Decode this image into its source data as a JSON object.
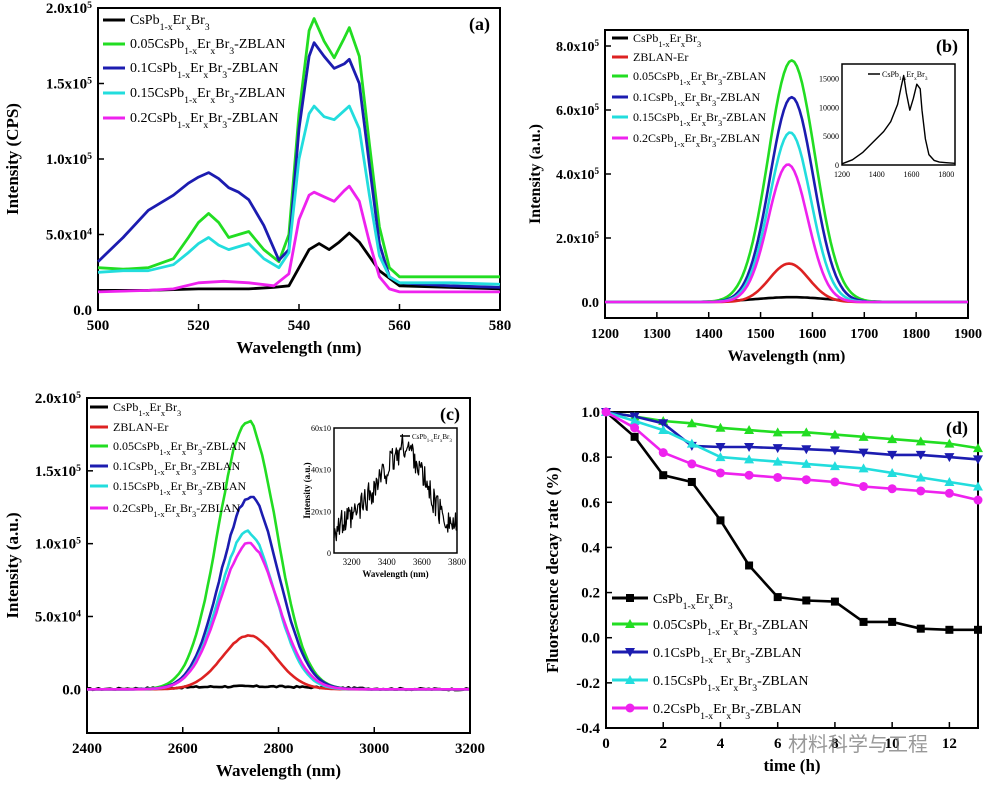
{
  "figure": {
    "watermark": "材料科学与工程"
  },
  "chart_data": [
    {
      "panel": "(a)",
      "type": "line",
      "xlabel": "Wavelength (nm)",
      "ylabel": "Intensity (CPS)",
      "xlim": [
        500,
        580
      ],
      "ylim": [
        0,
        200000
      ],
      "xticks": [
        500,
        520,
        540,
        560,
        580
      ],
      "yticks": [
        0,
        50000,
        100000,
        150000,
        200000
      ],
      "ytick_labels": [
        {
          "m": "0.0",
          "e": ""
        },
        {
          "m": "5.0x10",
          "e": "4"
        },
        {
          "m": "1.0x10",
          "e": "5"
        },
        {
          "m": "1.5x10",
          "e": "5"
        },
        {
          "m": "2.0x10",
          "e": "5"
        }
      ],
      "legend_position": "top-left",
      "series": [
        {
          "name": "CsPb1-xErxBr3",
          "color": "#000000",
          "x": [
            500,
            510,
            520,
            530,
            535,
            538,
            540,
            542,
            544,
            546,
            548,
            550,
            552,
            556,
            560,
            570,
            580
          ],
          "y": [
            13000,
            13000,
            14000,
            14000,
            15000,
            16000,
            28000,
            40000,
            44000,
            40000,
            45000,
            51000,
            45000,
            26000,
            16000,
            15000,
            14000
          ]
        },
        {
          "name": "0.05CsPb1-xErxBr3-ZBLAN",
          "color": "#22dd22",
          "x": [
            500,
            505,
            510,
            515,
            518,
            520,
            522,
            524,
            526,
            528,
            530,
            533,
            536,
            538,
            540,
            542,
            543,
            545,
            547,
            549,
            550,
            552,
            554,
            556,
            558,
            560,
            570,
            580
          ],
          "y": [
            28000,
            27000,
            28000,
            34000,
            48000,
            58000,
            64000,
            58000,
            48000,
            50000,
            52000,
            40000,
            32000,
            50000,
            130000,
            185000,
            193000,
            178000,
            167000,
            180000,
            187000,
            168000,
            110000,
            55000,
            28000,
            22000,
            22000,
            22000
          ]
        },
        {
          "name": "0.1CsPb1-xErxBr3-ZBLAN",
          "color": "#1c1cb0",
          "x": [
            500,
            505,
            510,
            515,
            518,
            520,
            522,
            524,
            526,
            528,
            530,
            533,
            536,
            538,
            540,
            542,
            543,
            545,
            547,
            549,
            550,
            552,
            554,
            556,
            558,
            560,
            570,
            580
          ],
          "y": [
            32000,
            48000,
            66000,
            76000,
            84000,
            88000,
            91000,
            87000,
            81000,
            78000,
            73000,
            56000,
            33000,
            40000,
            120000,
            168000,
            177000,
            168000,
            160000,
            163000,
            166000,
            150000,
            96000,
            44000,
            22000,
            18000,
            16000,
            15000
          ]
        },
        {
          "name": "0.15CsPb1-xErxBr3-ZBLAN",
          "color": "#22dddd",
          "x": [
            500,
            505,
            510,
            515,
            518,
            520,
            522,
            524,
            526,
            528,
            530,
            533,
            536,
            538,
            540,
            542,
            543,
            545,
            547,
            549,
            550,
            552,
            554,
            556,
            558,
            560,
            570,
            580
          ],
          "y": [
            25000,
            26000,
            26000,
            30000,
            38000,
            44000,
            48000,
            43000,
            40000,
            42000,
            44000,
            34000,
            28000,
            38000,
            100000,
            130000,
            135000,
            128000,
            126000,
            132000,
            135000,
            120000,
            76000,
            36000,
            22000,
            18000,
            18000,
            17000
          ]
        },
        {
          "name": "0.2CsPb1-xErxBr3-ZBLAN",
          "color": "#ee22ee",
          "x": [
            500,
            510,
            515,
            520,
            525,
            530,
            535,
            538,
            540,
            542,
            543,
            545,
            547,
            549,
            550,
            552,
            554,
            556,
            558,
            560,
            570,
            580
          ],
          "y": [
            12000,
            13000,
            14000,
            18000,
            19000,
            18000,
            16000,
            24000,
            60000,
            76000,
            78000,
            75000,
            72000,
            79000,
            82000,
            72000,
            45000,
            22000,
            14000,
            12000,
            12000,
            12000
          ]
        }
      ]
    },
    {
      "panel": "(b)",
      "type": "line",
      "xlabel": "Wavelength (nm)",
      "ylabel": "Intensity (a.u.)",
      "xlim": [
        1200,
        1900
      ],
      "ylim": [
        -50000,
        850000
      ],
      "xticks": [
        1200,
        1300,
        1400,
        1500,
        1600,
        1700,
        1800,
        1900
      ],
      "yticks": [
        0,
        200000,
        400000,
        600000,
        800000
      ],
      "ytick_labels": [
        {
          "m": "0.0",
          "e": ""
        },
        {
          "m": "2.0x10",
          "e": "5"
        },
        {
          "m": "4.0x10",
          "e": "5"
        },
        {
          "m": "6.0x10",
          "e": "5"
        },
        {
          "m": "8.0x10",
          "e": "5"
        }
      ],
      "legend_position": "top-left",
      "series": [
        {
          "name": "CsPb1-xErxBr3",
          "color": "#000000",
          "peak": 15000,
          "center": 1560,
          "sigma": 70
        },
        {
          "name": "ZBLAN-Er",
          "color": "#dd2222",
          "peak": 120000,
          "center": 1555,
          "sigma": 38
        },
        {
          "name": "0.05CsPb1-xErxBr3-ZBLAN",
          "color": "#22dd22",
          "peak": 755000,
          "center": 1560,
          "sigma": 45
        },
        {
          "name": "0.1CsPb1-xErxBr3-ZBLAN",
          "color": "#1c1cb0",
          "peak": 640000,
          "center": 1560,
          "sigma": 42
        },
        {
          "name": "0.15CsPb1-xErxBr3-ZBLAN",
          "color": "#22dddd",
          "peak": 530000,
          "center": 1557,
          "sigma": 40
        },
        {
          "name": "0.2CsPb1-xErxBr3-ZBLAN",
          "color": "#ee22ee",
          "peak": 430000,
          "center": 1553,
          "sigma": 38
        }
      ],
      "inset": {
        "legend": "CsPb1-xErxBr3",
        "xticks": [
          1200,
          1400,
          1600,
          1800
        ],
        "yticks": [
          0,
          5000,
          10000,
          15000
        ],
        "xlim": [
          1200,
          1850
        ],
        "ylim": [
          0,
          17500
        ],
        "x": [
          1200,
          1260,
          1320,
          1380,
          1440,
          1480,
          1520,
          1540,
          1555,
          1570,
          1590,
          1610,
          1630,
          1650,
          1660,
          1680,
          1700,
          1730,
          1760,
          1800,
          1850
        ],
        "y": [
          200,
          900,
          2200,
          4000,
          5800,
          7500,
          10500,
          13500,
          15500,
          12500,
          9500,
          11500,
          14000,
          13200,
          9500,
          4500,
          1800,
          800,
          500,
          400,
          300
        ]
      }
    },
    {
      "panel": "(c)",
      "type": "line",
      "xlabel": "Wavelength (nm)",
      "ylabel": "Intensity (a.u.)",
      "xlim": [
        2400,
        3200
      ],
      "ylim": [
        -30000,
        200000
      ],
      "xticks": [
        2400,
        2600,
        2800,
        3000,
        3200
      ],
      "yticks": [
        0,
        50000,
        100000,
        150000,
        200000
      ],
      "ytick_labels": [
        {
          "m": "0.0",
          "e": ""
        },
        {
          "m": "5.0x10",
          "e": "4"
        },
        {
          "m": "1.0x10",
          "e": "5"
        },
        {
          "m": "1.5x10",
          "e": "5"
        },
        {
          "m": "2.0x10",
          "e": "5"
        }
      ],
      "legend_position": "top-left",
      "series": [
        {
          "name": "CsPb1-xErxBr3",
          "color": "#000000",
          "peak": 2000,
          "center": 2740,
          "sigma": 150
        },
        {
          "name": "ZBLAN-Er",
          "color": "#dd2222",
          "peak": 37000,
          "center": 2738,
          "sigma": 55
        },
        {
          "name": "0.05CsPb1-xErxBr3-ZBLAN",
          "color": "#22dd22",
          "peak": 184000,
          "center": 2735,
          "sigma": 60
        },
        {
          "name": "0.1CsPb1-xErxBr3-ZBLAN",
          "color": "#1c1cb0",
          "peak": 132000,
          "center": 2740,
          "sigma": 60
        },
        {
          "name": "0.15CsPb1-xErxBr3-ZBLAN",
          "color": "#22dddd",
          "peak": 108000,
          "center": 2735,
          "sigma": 58
        },
        {
          "name": "0.2CsPb1-xErxBr3-ZBLAN",
          "color": "#ee22ee",
          "peak": 100000,
          "center": 2738,
          "sigma": 60
        }
      ],
      "inset": {
        "legend": "CsPb1-xErxBr3",
        "xlabel": "Wavelength (nm)",
        "ylabel": "Intensity (a.u.)",
        "xticks": [
          3200,
          3400,
          3600,
          3800
        ],
        "yticks": [
          0,
          20,
          40,
          60
        ],
        "ytick_labels": [
          "0",
          "20x10",
          "40x10",
          "60x10"
        ],
        "xlim": [
          3100,
          3800
        ],
        "ylim": [
          0,
          60
        ],
        "x": [
          3100,
          3200,
          3300,
          3400,
          3450,
          3500,
          3550,
          3600,
          3650,
          3700,
          3800
        ],
        "y": [
          12,
          16,
          28,
          40,
          46,
          52,
          48,
          38,
          28,
          20,
          12
        ]
      }
    },
    {
      "panel": "(d)",
      "type": "line",
      "xlabel": "time (h)",
      "ylabel": "Fluorescence decay rate (%)",
      "xlim": [
        0,
        13
      ],
      "ylim": [
        -0.4,
        1.0
      ],
      "xticks": [
        0,
        2,
        4,
        6,
        8,
        10,
        12
      ],
      "yticks": [
        -0.4,
        -0.2,
        0.0,
        0.2,
        0.4,
        0.6,
        0.8,
        1.0
      ],
      "legend_position": "bottom-left",
      "x": [
        0,
        1,
        2,
        3,
        4,
        5,
        6,
        7,
        8,
        9,
        10,
        11,
        12,
        13
      ],
      "series": [
        {
          "name": "CsPb1-xErxBr3",
          "color": "#000000",
          "marker": "square",
          "values": [
            1.0,
            0.89,
            0.72,
            0.69,
            0.52,
            0.32,
            0.18,
            0.165,
            0.16,
            0.07,
            0.07,
            0.04,
            0.035,
            0.035
          ]
        },
        {
          "name": "0.05CsPb1-xErxBr3-ZBLAN",
          "color": "#22dd22",
          "marker": "triangle-up",
          "values": [
            1.0,
            0.98,
            0.96,
            0.95,
            0.93,
            0.92,
            0.91,
            0.91,
            0.9,
            0.89,
            0.88,
            0.87,
            0.86,
            0.84
          ]
        },
        {
          "name": "0.1CsPb1-xErxBr3-ZBLAN",
          "color": "#1c1cb0",
          "marker": "triangle-down",
          "values": [
            1.0,
            0.98,
            0.95,
            0.85,
            0.845,
            0.845,
            0.84,
            0.835,
            0.83,
            0.82,
            0.81,
            0.81,
            0.8,
            0.79
          ]
        },
        {
          "name": "0.15CsPb1-xErxBr3-ZBLAN",
          "color": "#22dddd",
          "marker": "triangle-up",
          "values": [
            1.0,
            0.96,
            0.92,
            0.86,
            0.8,
            0.79,
            0.78,
            0.77,
            0.76,
            0.75,
            0.73,
            0.71,
            0.69,
            0.67
          ]
        },
        {
          "name": "0.2CsPb1-xErxBr3-ZBLAN",
          "color": "#ee22ee",
          "marker": "circle",
          "values": [
            1.0,
            0.93,
            0.82,
            0.77,
            0.73,
            0.72,
            0.71,
            0.7,
            0.69,
            0.67,
            0.66,
            0.65,
            0.64,
            0.61
          ]
        }
      ]
    }
  ]
}
